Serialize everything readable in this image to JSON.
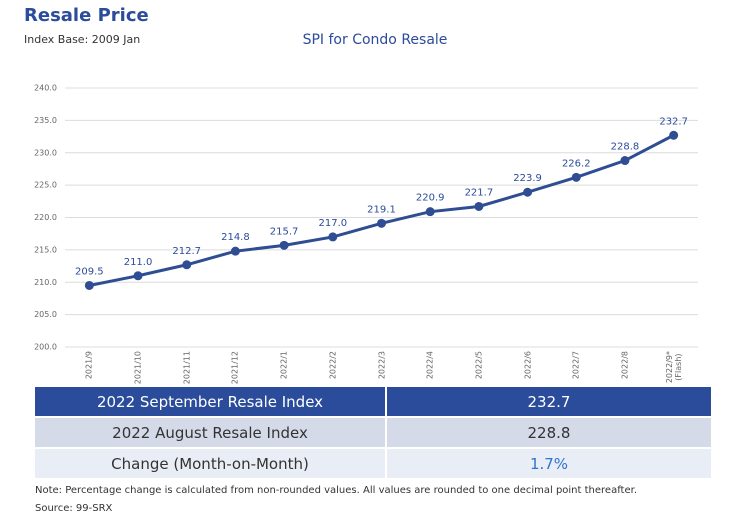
{
  "header": {
    "title": "Resale Price",
    "subtitle": "Index Base: 2009 Jan"
  },
  "chart_data": {
    "type": "line",
    "title": "SPI for Condo Resale",
    "categories": [
      "2021/9",
      "2021/10",
      "2021/11",
      "2021/12",
      "2022/1",
      "2022/2",
      "2022/3",
      "2022/4",
      "2022/5",
      "2022/6",
      "2022/7",
      "2022/8",
      "2022/9*\n(Flash)"
    ],
    "values": [
      209.5,
      211.0,
      212.7,
      214.8,
      215.7,
      217.0,
      219.1,
      220.9,
      221.7,
      223.9,
      226.2,
      228.8,
      232.7
    ],
    "value_labels": [
      "209.5",
      "211.0",
      "212.7",
      "214.8",
      "215.7",
      "217.0",
      "219.1",
      "220.9",
      "221.7",
      "223.9",
      "226.2",
      "228.8",
      "232.7"
    ],
    "color": "#2f4d93",
    "ylim": [
      200,
      240
    ],
    "yticks": [
      {
        "value": 200,
        "label": "200.0"
      },
      {
        "value": 205,
        "label": "205.0"
      },
      {
        "value": 210,
        "label": "210.0"
      },
      {
        "value": 215,
        "label": "215.0"
      },
      {
        "value": 220,
        "label": "220.0"
      },
      {
        "value": 225,
        "label": "225.0"
      },
      {
        "value": 230,
        "label": "230.0"
      },
      {
        "value": 235,
        "label": "235.0"
      },
      {
        "value": 240,
        "label": "240.0"
      }
    ],
    "grid": true
  },
  "table": {
    "rows": [
      [
        "2022 September Resale Index",
        "232.7"
      ],
      [
        "2022 August Resale Index",
        "228.8"
      ],
      [
        "Change (Month-on-Month)",
        "1.7%"
      ]
    ]
  },
  "footer": {
    "note": "Note: Percentage change is calculated from non-rounded values.  All values are rounded to one decimal point thereafter.",
    "source": "Source: 99-SRX"
  }
}
